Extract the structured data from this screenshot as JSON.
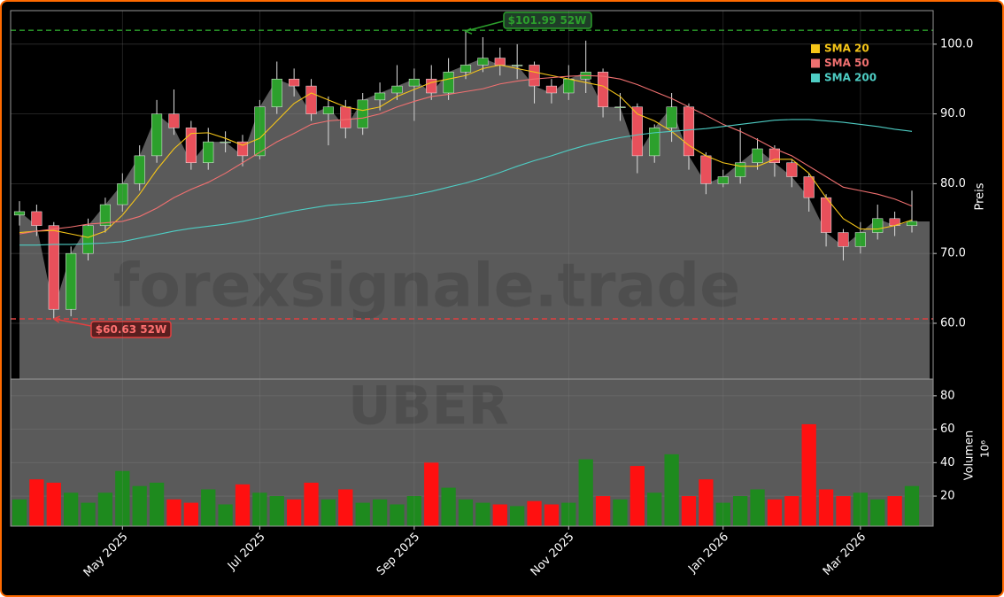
{
  "chart_data": [
    {
      "type": "candlestick",
      "watermark": "forexsignale.trade",
      "ylabel": "Preis",
      "ylim": [
        52,
        104.8
      ],
      "yticks": [
        {
          "value": 60,
          "label": "60.0"
        },
        {
          "value": 70,
          "label": "70.0"
        },
        {
          "value": 80,
          "label": "80.0"
        },
        {
          "value": 90,
          "label": "90.0"
        },
        {
          "value": 100,
          "label": "100.0"
        }
      ],
      "grid": true,
      "up_color": "#2ca02c",
      "down_color": "#e8505b",
      "area_color": "#5a5a5a",
      "open": [
        75.5,
        76,
        74,
        62,
        70,
        74,
        77,
        80,
        84,
        90,
        88,
        83,
        86,
        86,
        84,
        91,
        95,
        94,
        90,
        91,
        88,
        92,
        93,
        94,
        95,
        93,
        96,
        97,
        98,
        97,
        97,
        94,
        93,
        95,
        96,
        91,
        91,
        84,
        88,
        91,
        84,
        80,
        81,
        83,
        85,
        83,
        81,
        78,
        73,
        71,
        73,
        75,
        74
      ],
      "high": [
        77.5,
        77,
        74.5,
        71,
        75,
        78,
        81.5,
        85.5,
        92,
        93.5,
        89,
        88,
        87.5,
        87,
        92,
        97.5,
        96.5,
        95,
        92.5,
        92,
        93,
        94.5,
        97,
        96.5,
        97,
        98,
        101.99,
        101,
        99.5,
        100,
        97.5,
        95,
        97,
        100.5,
        96.5,
        93,
        91.5,
        88.5,
        93,
        91.5,
        84.5,
        82,
        88,
        86.5,
        85.5,
        83.5,
        81.5,
        78.5,
        73.5,
        74.5,
        77,
        76,
        79
      ],
      "low": [
        74,
        72.5,
        60.63,
        61,
        69,
        73,
        76,
        79,
        83,
        87,
        82,
        82,
        84.5,
        82.5,
        83.5,
        90,
        92.5,
        89,
        85.5,
        86.5,
        87,
        90.5,
        92,
        89,
        92,
        92,
        95,
        96,
        95.5,
        95,
        91.5,
        91.5,
        92,
        93,
        89.5,
        89,
        81.5,
        83,
        86,
        82,
        78.5,
        79.5,
        80,
        82,
        81,
        79.5,
        76,
        71,
        69,
        70,
        72,
        72.5,
        73
      ],
      "close": [
        76,
        74,
        62,
        70,
        74,
        77,
        80,
        84,
        90,
        88,
        83,
        86,
        86,
        84,
        91,
        95,
        94,
        90,
        91,
        88,
        92,
        93,
        94,
        95,
        93,
        96,
        97,
        98,
        97,
        97,
        94,
        93,
        95,
        96,
        91,
        91,
        84,
        88,
        91,
        84,
        80,
        81,
        83,
        85,
        83,
        81,
        78,
        73,
        71,
        73,
        75,
        74,
        74.6
      ],
      "series": [
        {
          "name": "SMA 20",
          "color": "#f5c518",
          "values": [
            73,
            73.2,
            73.3,
            72.8,
            72.3,
            73.2,
            75.5,
            78.5,
            82,
            85,
            87.2,
            87.3,
            86.5,
            85.5,
            86.5,
            89,
            91.5,
            93,
            92,
            91,
            90.5,
            91,
            92.5,
            93.5,
            94.5,
            95,
            95.5,
            96.5,
            97,
            96.5,
            96,
            95.5,
            95,
            94.5,
            94,
            92.5,
            90,
            89,
            87.5,
            85.5,
            84,
            83,
            82.5,
            82.5,
            83.5,
            83.5,
            81.5,
            78,
            75,
            73.5,
            73.5,
            74,
            74.8
          ]
        },
        {
          "name": "SMA 50",
          "color": "#f07070",
          "values": [
            72.8,
            73.2,
            73.5,
            73.8,
            74.2,
            74.4,
            74.6,
            75.3,
            76.5,
            78,
            79.2,
            80.2,
            81.5,
            83,
            84.5,
            86,
            87.2,
            88.5,
            89,
            89.2,
            89.4,
            90,
            91,
            91.8,
            92.5,
            92.8,
            93.2,
            93.6,
            94.3,
            94.7,
            95,
            95.2,
            95.4,
            95.5,
            95.4,
            95,
            94.2,
            93.2,
            92.2,
            91,
            89.8,
            88.5,
            87.5,
            86.3,
            85,
            84,
            82.5,
            81,
            79.5,
            79,
            78.5,
            77.8,
            76.8
          ]
        },
        {
          "name": "SMA 200",
          "color": "#4ecdc4",
          "values": [
            71.2,
            71.2,
            71.3,
            71.3,
            71.4,
            71.5,
            71.7,
            72.2,
            72.7,
            73.2,
            73.6,
            73.9,
            74.2,
            74.6,
            75.1,
            75.6,
            76.1,
            76.5,
            76.9,
            77.1,
            77.3,
            77.6,
            78,
            78.4,
            78.9,
            79.5,
            80.1,
            80.8,
            81.6,
            82.5,
            83.3,
            84,
            84.8,
            85.5,
            86.1,
            86.6,
            87,
            87.3,
            87.5,
            87.7,
            87.9,
            88.2,
            88.5,
            88.8,
            89.1,
            89.2,
            89.2,
            89,
            88.8,
            88.5,
            88.2,
            87.8,
            87.5
          ]
        }
      ],
      "legend": "upper right",
      "hlines": [
        {
          "value": 101.99,
          "label": "$101.99 52W",
          "color": "#2ca02c"
        },
        {
          "value": 60.63,
          "label": "$60.63 52W",
          "color": "#e04040"
        }
      ]
    },
    {
      "type": "bar",
      "watermark": "UBER",
      "ylabel": "Volumen",
      "offset_label": "10⁶",
      "ylim": [
        2,
        90
      ],
      "yticks": [
        20,
        40,
        60,
        80
      ],
      "grid": true,
      "categories": [
        null,
        null,
        null,
        null,
        null,
        null,
        "May 2025",
        null,
        null,
        null,
        null,
        null,
        null,
        null,
        "Jul 2025",
        null,
        null,
        null,
        null,
        null,
        null,
        null,
        null,
        "Sep 2025",
        null,
        null,
        null,
        null,
        null,
        null,
        null,
        null,
        "Nov 2025",
        null,
        null,
        null,
        null,
        null,
        null,
        null,
        null,
        "Jan 2026",
        null,
        null,
        null,
        null,
        null,
        null,
        null,
        "Mar 2026",
        null,
        null,
        null
      ],
      "values": [
        18,
        30,
        28,
        22,
        16,
        22,
        35,
        26,
        28,
        18,
        16,
        24,
        15,
        27,
        22,
        20,
        18,
        28,
        18,
        24,
        16,
        18,
        15,
        20,
        40,
        25,
        18,
        16,
        15,
        14,
        17,
        15,
        16,
        42,
        20,
        18,
        38,
        22,
        45,
        20,
        30,
        16,
        20,
        24,
        18,
        20,
        63,
        24,
        20,
        22,
        18,
        20,
        26
      ]
    }
  ]
}
